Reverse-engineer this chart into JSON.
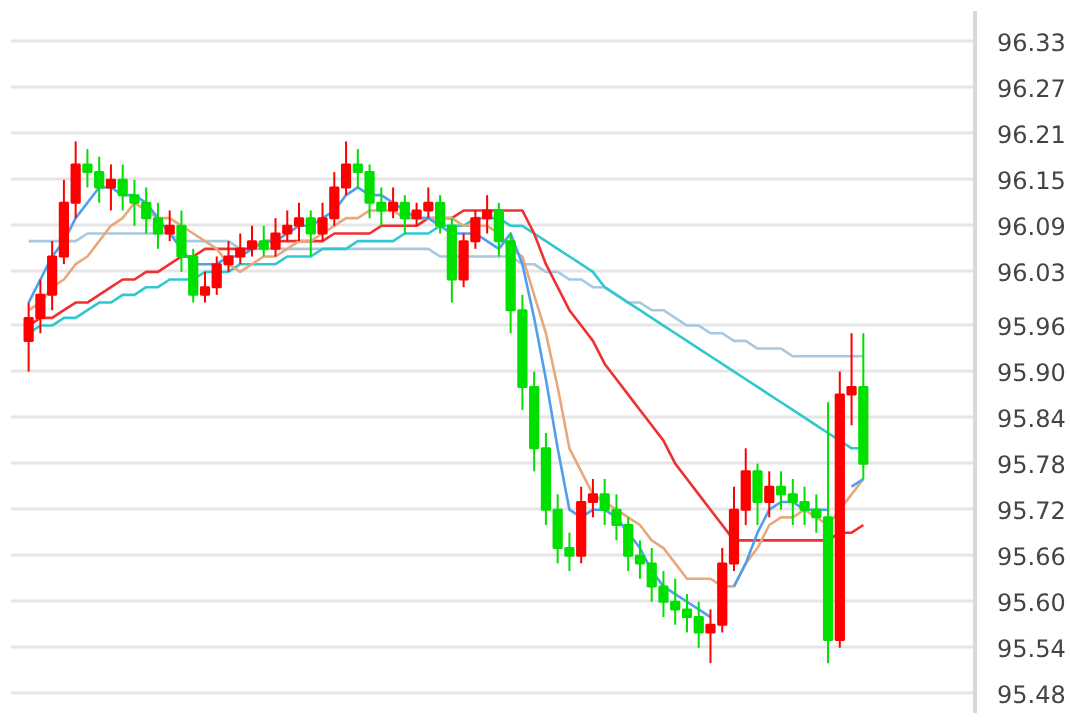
{
  "chart_data": {
    "type": "candlestick",
    "tick_labels": "y",
    "grid": "y",
    "categories": [
      null,
      null,
      null,
      null,
      null,
      null,
      null,
      null,
      null,
      null,
      null,
      null,
      null,
      null,
      null,
      null,
      null,
      null,
      null,
      null,
      null,
      null,
      null,
      null,
      null,
      null,
      null,
      null,
      null,
      null,
      null,
      null,
      null,
      null,
      null,
      null,
      null,
      null,
      null,
      null,
      null,
      null,
      null,
      null,
      null,
      null,
      null,
      null,
      null,
      null,
      null,
      null,
      null,
      null,
      null,
      null,
      null,
      null,
      null,
      null,
      null,
      null,
      null,
      null,
      null,
      null,
      null,
      null,
      null,
      null,
      null,
      null
    ],
    "ylim": [
      95.455,
      96.37
    ],
    "yticks": [
      95.48,
      95.54,
      {
        "value": 95.6,
        "label": "95.60"
      },
      95.66,
      95.72,
      95.78,
      95.84,
      {
        "value": 95.9,
        "label": "95.90"
      },
      95.96,
      96.03,
      96.09,
      96.15,
      96.21,
      96.27,
      96.33
    ],
    "ohlc": [
      [
        95.94,
        95.99,
        95.9,
        95.97
      ],
      [
        95.97,
        96.02,
        95.95,
        96.0
      ],
      [
        96.0,
        96.07,
        95.98,
        96.05
      ],
      [
        96.05,
        96.15,
        96.04,
        96.12
      ],
      [
        96.12,
        96.2,
        96.1,
        96.17
      ],
      [
        96.17,
        96.19,
        96.14,
        96.16
      ],
      [
        96.16,
        96.18,
        96.12,
        96.14
      ],
      [
        96.14,
        96.17,
        96.11,
        96.15
      ],
      [
        96.15,
        96.17,
        96.11,
        96.13
      ],
      [
        96.13,
        96.15,
        96.09,
        96.12
      ],
      [
        96.12,
        96.14,
        96.08,
        96.1
      ],
      [
        96.1,
        96.12,
        96.06,
        96.08
      ],
      [
        96.08,
        96.11,
        96.07,
        96.09
      ],
      [
        96.09,
        96.11,
        96.03,
        96.05
      ],
      [
        96.05,
        96.06,
        95.99,
        96.0
      ],
      [
        96.0,
        96.03,
        95.99,
        96.01
      ],
      [
        96.01,
        96.05,
        96.0,
        96.04
      ],
      [
        96.04,
        96.07,
        96.03,
        96.05
      ],
      [
        96.05,
        96.08,
        96.04,
        96.06
      ],
      [
        96.06,
        96.09,
        96.05,
        96.07
      ],
      [
        96.07,
        96.09,
        96.05,
        96.06
      ],
      [
        96.06,
        96.1,
        96.05,
        96.08
      ],
      [
        96.08,
        96.11,
        96.07,
        96.09
      ],
      [
        96.09,
        96.12,
        96.07,
        96.1
      ],
      [
        96.1,
        96.11,
        96.05,
        96.08
      ],
      [
        96.08,
        96.12,
        96.07,
        96.1
      ],
      [
        96.1,
        96.16,
        96.09,
        96.14
      ],
      [
        96.14,
        96.2,
        96.13,
        96.17
      ],
      [
        96.17,
        96.19,
        96.14,
        96.16
      ],
      [
        96.16,
        96.17,
        96.1,
        96.12
      ],
      [
        96.12,
        96.14,
        96.09,
        96.11
      ],
      [
        96.11,
        96.14,
        96.1,
        96.12
      ],
      [
        96.12,
        96.13,
        96.08,
        96.1
      ],
      [
        96.1,
        96.12,
        96.09,
        96.11
      ],
      [
        96.11,
        96.14,
        96.1,
        96.12
      ],
      [
        96.12,
        96.13,
        96.08,
        96.09
      ],
      [
        96.09,
        96.1,
        95.99,
        96.02
      ],
      [
        96.02,
        96.08,
        96.01,
        96.07
      ],
      [
        96.07,
        96.11,
        96.06,
        96.1
      ],
      [
        96.1,
        96.13,
        96.08,
        96.11
      ],
      [
        96.11,
        96.12,
        96.05,
        96.07
      ],
      [
        96.07,
        96.08,
        95.95,
        95.98
      ],
      [
        95.98,
        96.0,
        95.85,
        95.88
      ],
      [
        95.88,
        95.9,
        95.77,
        95.8
      ],
      [
        95.8,
        95.82,
        95.7,
        95.72
      ],
      [
        95.72,
        95.74,
        95.65,
        95.67
      ],
      [
        95.67,
        95.69,
        95.64,
        95.66
      ],
      [
        95.66,
        95.75,
        95.65,
        95.73
      ],
      [
        95.73,
        95.76,
        95.71,
        95.74
      ],
      [
        95.74,
        95.76,
        95.7,
        95.72
      ],
      [
        95.72,
        95.74,
        95.68,
        95.7
      ],
      [
        95.7,
        95.71,
        95.64,
        95.66
      ],
      [
        95.66,
        95.68,
        95.63,
        95.65
      ],
      [
        95.65,
        95.67,
        95.6,
        95.62
      ],
      [
        95.62,
        95.64,
        95.58,
        95.6
      ],
      [
        95.6,
        95.63,
        95.57,
        95.59
      ],
      [
        95.59,
        95.61,
        95.56,
        95.58
      ],
      [
        95.58,
        95.6,
        95.54,
        95.56
      ],
      [
        95.56,
        95.59,
        95.52,
        95.57
      ],
      [
        95.57,
        95.67,
        95.56,
        95.65
      ],
      [
        95.65,
        95.75,
        95.64,
        95.72
      ],
      [
        95.72,
        95.8,
        95.7,
        95.77
      ],
      [
        95.77,
        95.78,
        95.7,
        95.73
      ],
      [
        95.73,
        95.77,
        95.71,
        95.75
      ],
      [
        95.75,
        95.77,
        95.72,
        95.74
      ],
      [
        95.74,
        95.76,
        95.7,
        95.73
      ],
      [
        95.73,
        95.75,
        95.7,
        95.72
      ],
      [
        95.72,
        95.74,
        95.69,
        95.71
      ],
      [
        95.71,
        95.86,
        95.52,
        95.55
      ],
      [
        95.55,
        95.9,
        95.54,
        95.87
      ],
      [
        95.87,
        95.95,
        95.83,
        95.88
      ],
      [
        95.88,
        95.95,
        95.76,
        95.78
      ]
    ],
    "colors": [
      "#ff0000",
      "#ff0000",
      "#ff0000",
      "#ff0000",
      "#ff0000",
      "#00e000",
      "#00e000",
      "#ff0000",
      "#00e000",
      "#00e000",
      "#00e000",
      "#00e000",
      "#ff0000",
      "#00e000",
      "#00e000",
      "#ff0000",
      "#ff0000",
      "#ff0000",
      "#ff0000",
      "#ff0000",
      "#00e000",
      "#ff0000",
      "#ff0000",
      "#ff0000",
      "#00e000",
      "#ff0000",
      "#ff0000",
      "#ff0000",
      "#00e000",
      "#00e000",
      "#00e000",
      "#ff0000",
      "#00e000",
      "#ff0000",
      "#ff0000",
      "#00e000",
      "#00e000",
      "#ff0000",
      "#ff0000",
      "#ff0000",
      "#00e000",
      "#00e000",
      "#00e000",
      "#00e000",
      "#00e000",
      "#00e000",
      "#00e000",
      "#ff0000",
      "#ff0000",
      "#00e000",
      "#00e000",
      "#00e000",
      "#00e000",
      "#00e000",
      "#00e000",
      "#00e000",
      "#00e000",
      "#00e000",
      "#ff0000",
      "#ff0000",
      "#ff0000",
      "#ff0000",
      "#00e000",
      "#ff0000",
      "#00e000",
      "#00e000",
      "#00e000",
      "#00e000",
      "#00e000",
      "#ff0000",
      "#ff0000",
      "#00e000"
    ],
    "series": [
      {
        "type": "line",
        "color": "#a8c8e0",
        "values": [
          96.07,
          96.07,
          96.07,
          96.07,
          96.07,
          96.08,
          96.08,
          96.08,
          96.08,
          96.08,
          96.08,
          96.08,
          96.08,
          96.07,
          96.07,
          96.07,
          96.07,
          96.07,
          96.06,
          96.06,
          96.06,
          96.06,
          96.06,
          96.06,
          96.06,
          96.06,
          96.06,
          96.06,
          96.06,
          96.06,
          96.06,
          96.06,
          96.06,
          96.06,
          96.06,
          96.05,
          96.05,
          96.05,
          96.05,
          96.05,
          96.05,
          96.05,
          96.04,
          96.04,
          96.03,
          96.03,
          96.02,
          96.02,
          96.01,
          96.01,
          96.0,
          95.99,
          95.99,
          95.98,
          95.98,
          95.97,
          95.96,
          95.96,
          95.95,
          95.95,
          95.94,
          95.94,
          95.93,
          95.93,
          95.93,
          95.92,
          95.92,
          95.92,
          95.92,
          95.92,
          95.92,
          95.92
        ]
      },
      {
        "type": "line",
        "color": "#30c8d0",
        "values": [
          95.95,
          95.96,
          95.96,
          95.97,
          95.97,
          95.98,
          95.99,
          95.99,
          96.0,
          96.0,
          96.01,
          96.01,
          96.02,
          96.02,
          96.02,
          96.03,
          96.03,
          96.03,
          96.04,
          96.04,
          96.04,
          96.04,
          96.05,
          96.05,
          96.05,
          96.06,
          96.06,
          96.06,
          96.07,
          96.07,
          96.07,
          96.07,
          96.08,
          96.08,
          96.08,
          96.09,
          96.09,
          96.09,
          96.1,
          96.1,
          96.1,
          96.09,
          96.09,
          96.08,
          96.07,
          96.06,
          96.05,
          96.04,
          96.03,
          96.01,
          96.0,
          95.99,
          95.98,
          95.97,
          95.96,
          95.95,
          95.94,
          95.93,
          95.92,
          95.91,
          95.9,
          95.89,
          95.88,
          95.87,
          95.86,
          95.85,
          95.84,
          95.83,
          95.82,
          95.81,
          95.8,
          95.8
        ]
      },
      {
        "type": "line",
        "color": "#ef3030",
        "values": [
          95.96,
          95.97,
          95.97,
          95.98,
          95.99,
          95.99,
          96.0,
          96.01,
          96.02,
          96.02,
          96.03,
          96.03,
          96.04,
          96.05,
          96.05,
          96.06,
          96.06,
          96.06,
          96.06,
          96.06,
          96.07,
          96.07,
          96.07,
          96.07,
          96.07,
          96.07,
          96.08,
          96.08,
          96.08,
          96.08,
          96.09,
          96.09,
          96.09,
          96.09,
          96.1,
          96.1,
          96.1,
          96.11,
          96.11,
          96.11,
          96.11,
          96.11,
          96.11,
          96.08,
          96.04,
          96.01,
          95.98,
          95.96,
          95.94,
          95.91,
          95.89,
          95.87,
          95.85,
          95.83,
          95.81,
          95.78,
          95.76,
          95.74,
          95.72,
          95.7,
          95.68,
          95.68,
          95.68,
          95.68,
          95.68,
          95.68,
          95.68,
          95.68,
          95.68,
          95.69,
          95.69,
          95.7
        ]
      },
      {
        "type": "line",
        "color": "#e8a87c",
        "values": [
          95.98,
          95.99,
          96.01,
          96.02,
          96.04,
          96.05,
          96.07,
          96.09,
          96.1,
          96.12,
          96.11,
          96.1,
          96.1,
          96.09,
          96.08,
          96.07,
          96.06,
          96.04,
          96.03,
          96.04,
          96.05,
          96.05,
          96.06,
          96.07,
          96.07,
          96.08,
          96.09,
          96.1,
          96.1,
          96.11,
          96.11,
          96.11,
          96.1,
          96.1,
          96.1,
          96.1,
          96.1,
          96.09,
          96.09,
          96.09,
          96.08,
          96.06,
          96.05,
          96.0,
          95.95,
          95.88,
          95.8,
          95.77,
          95.74,
          95.73,
          95.72,
          95.71,
          95.7,
          95.68,
          95.67,
          95.65,
          95.63,
          95.63,
          95.63,
          95.62,
          95.62,
          95.65,
          95.67,
          95.7,
          95.71,
          95.71,
          95.72,
          95.71,
          95.7,
          95.72,
          95.74,
          95.76
        ]
      },
      {
        "type": "line",
        "color": "#4f9fef",
        "values": [
          95.99,
          96.02,
          96.05,
          96.07,
          96.1,
          96.12,
          96.14,
          96.14,
          96.13,
          96.13,
          96.12,
          96.1,
          96.08,
          96.06,
          96.04,
          96.04,
          96.04,
          96.05,
          96.05,
          96.06,
          96.07,
          96.07,
          96.08,
          96.09,
          96.09,
          96.1,
          96.11,
          96.13,
          96.14,
          96.13,
          96.13,
          96.12,
          96.11,
          96.1,
          96.1,
          96.09,
          96.08,
          96.08,
          96.08,
          96.07,
          96.06,
          96.08,
          96.04,
          95.97,
          95.89,
          95.8,
          95.72,
          95.71,
          95.72,
          95.72,
          95.71,
          95.69,
          95.67,
          95.64,
          95.62,
          95.61,
          95.6,
          95.59,
          95.58,
          null,
          95.62,
          95.65,
          95.69,
          95.72,
          95.73,
          95.73,
          95.72,
          95.72,
          95.72,
          null,
          95.75,
          95.76
        ]
      }
    ]
  }
}
